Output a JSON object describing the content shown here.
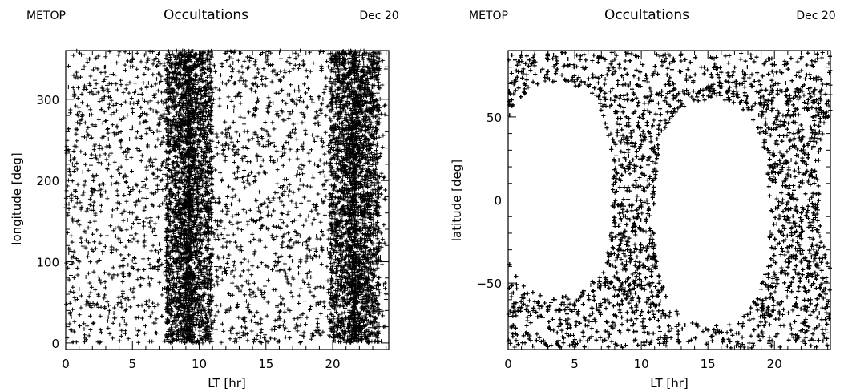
{
  "chart_data": [
    {
      "type": "scatter",
      "header_left": "METOP",
      "title": "Occultations",
      "header_right": "Dec 20",
      "xlabel": "LT [hr]",
      "ylabel": "longitude [deg]",
      "xlim": [
        0,
        24.2
      ],
      "ylim": [
        -8,
        360
      ],
      "xticks": [
        0,
        5,
        10,
        15,
        20
      ],
      "yticks": [
        0,
        100,
        200,
        300
      ],
      "marker": "+",
      "marker_color": "#000000",
      "dense_bands_lt": [
        [
          7.5,
          11.0
        ],
        [
          19.8,
          23.5
        ]
      ],
      "note": "Uniform density in longitude 0-360; occultation points concentrated in LT bands ~7.5-11 hr and ~19.8-23.5 hr"
    },
    {
      "type": "scatter",
      "header_left": "METOP",
      "title": "Occultations",
      "header_right": "Dec 20",
      "xlabel": "LT [hr]",
      "ylabel": "latitude [deg]",
      "xlim": [
        0,
        24.2
      ],
      "ylim": [
        -90,
        90
      ],
      "xticks": [
        0,
        5,
        10,
        15,
        20
      ],
      "yticks": [
        -50,
        0,
        50
      ],
      "marker": "+",
      "marker_color": "#000000",
      "empty_regions": [
        {
          "lt_center": 3.6,
          "lt_halfwidth": 4.2,
          "lat_min": -58,
          "lat_max": 70
        },
        {
          "lt_center": 15.3,
          "lt_halfwidth": 4.3,
          "lat_min": -75,
          "lat_max": 60
        }
      ]
    }
  ]
}
